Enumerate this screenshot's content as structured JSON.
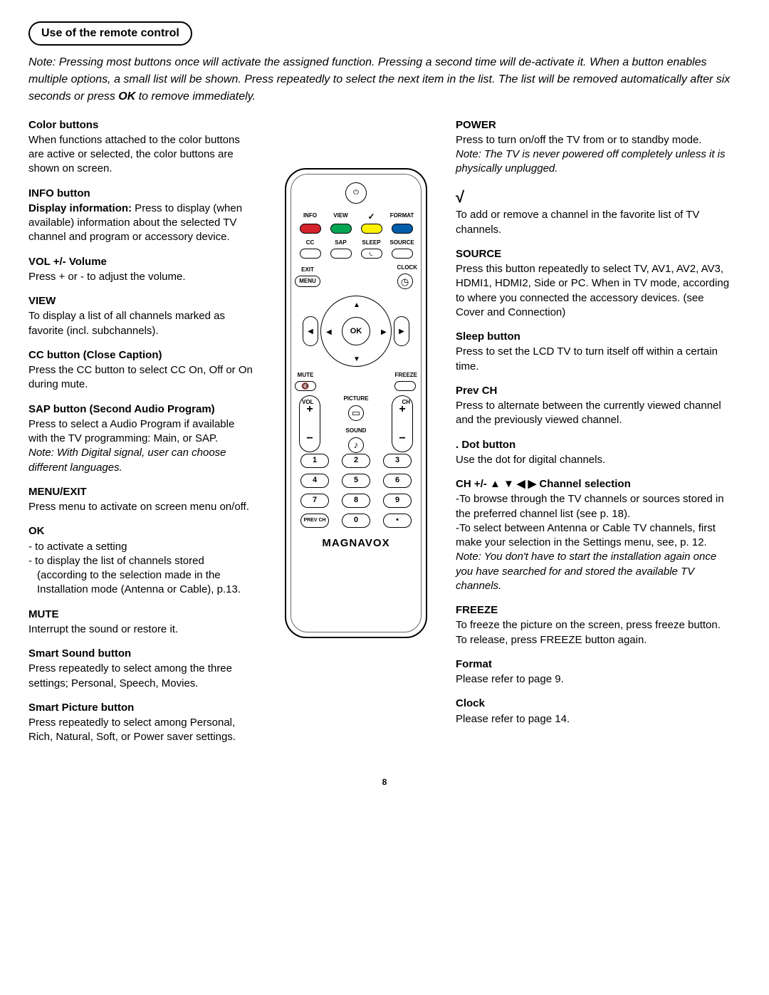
{
  "page_title": "Use of the remote control",
  "intro_note_html": "Note: Pressing most buttons once will activate the assigned function. Pressing a second time will de-activate it. When a button enables multiple options, a small list will be shown. Press repeatedly to select the next item in the list. The list will be removed automatically after six seconds or press <b>OK</b> to remove immediately.",
  "page_number": "8",
  "left_sections": [
    {
      "title": "Color buttons",
      "body": "When functions attached to the color buttons are active or selected, the color buttons are shown on screen."
    },
    {
      "title": "INFO button",
      "body": "<b>Display information:</b> Press to display (when available) information about the selected TV channel and program or accessory device."
    },
    {
      "title": "VOL +/- Volume",
      "body": "Press + or - to adjust the volume."
    },
    {
      "title": "VIEW",
      "body": "To display a list of all channels marked as favorite (incl. subchannels)."
    },
    {
      "title": "CC button (Close Caption)",
      "body": "Press the CC button to select CC On, Off or On during mute."
    },
    {
      "title": "SAP button (Second Audio Program)",
      "body": "Press to select a Audio Program if available with the TV programming: Main, or SAP.",
      "note": "Note: With Digital signal, user can choose different languages."
    },
    {
      "title": "MENU/EXIT",
      "body": "Press menu to activate on screen menu on/off."
    },
    {
      "title": "OK",
      "list": [
        "- to activate a setting",
        "- to display the list of channels stored (according to the selection made in the Installation mode (Antenna or Cable), p.13."
      ]
    },
    {
      "title": "MUTE",
      "body": "Interrupt the sound or restore it."
    },
    {
      "title": "Smart Sound button",
      "body": "Press repeatedly to select among the three settings; Personal, Speech, Movies."
    },
    {
      "title": "Smart Picture button",
      "body": "Press repeatedly to select among Personal, Rich, Natural, Soft, or Power saver settings."
    }
  ],
  "right_sections": [
    {
      "title": "POWER",
      "body": "Press to turn on/off the TV from or to standby mode.",
      "note": "Note: The TV is never powered off completely unless it is physically unplugged."
    },
    {
      "title_html": "<span class='check'>√</span>",
      "body": "To add or remove a channel in the favorite list of TV channels."
    },
    {
      "title": "SOURCE",
      "body": "Press this button repeatedly to select TV, AV1, AV2, AV3, HDMI1, HDMI2, Side or PC. When in TV mode, according to where you connected the accessory devices. (see Cover and Connection)"
    },
    {
      "title": "Sleep button",
      "body": "Press to set the LCD TV to turn itself off within a certain time."
    },
    {
      "title": "Prev CH",
      "body": "Press to alternate between the currently viewed channel and the previously viewed channel."
    },
    {
      "title": ". Dot button",
      "body": "Use the dot for digital channels."
    },
    {
      "title_html": "CH +/- <span class='arrows-inline'>▲ ▼ ◀ ▶</span> Channel selection",
      "body": "-To browse through the TV channels or sources stored in the preferred channel list (see p. 18).<br>-To select between Antenna or Cable TV channels, first make your selection in the Settings menu, see, p. 12.",
      "note": "Note: You don't have to start the installation again once you have searched for and stored the available TV channels."
    },
    {
      "title": "FREEZE",
      "body": "To freeze the picture on the screen, press freeze button. To release, press FREEZE button again."
    },
    {
      "title": "Format",
      "body": "Please refer to page 9."
    },
    {
      "title": "Clock",
      "body": "Please refer to page 14."
    }
  ],
  "remote": {
    "brand": "MAGNAVOX",
    "color_buttons": [
      {
        "label": "INFO",
        "color": "#d2232a"
      },
      {
        "label": "VIEW",
        "color": "#00a651"
      },
      {
        "label": "✓",
        "color": "#fff200",
        "is_check": true
      },
      {
        "label": "FORMAT",
        "color": "#005dab"
      }
    ],
    "row2": [
      "CC",
      "SAP",
      "SLEEP",
      "SOURCE"
    ],
    "row3_left": "EXIT",
    "row3_right": "CLOCK",
    "menu": "MENU",
    "ok": "OK",
    "mute": "MUTE",
    "freeze": "FREEZE",
    "vol": "VOL",
    "ch": "CH",
    "picture": "PICTURE",
    "sound": "SOUND",
    "numpad": [
      [
        "1",
        "2",
        "3"
      ],
      [
        "4",
        "5",
        "6"
      ],
      [
        "7",
        "8",
        "9"
      ],
      [
        "PREV CH",
        "0",
        "•"
      ]
    ]
  }
}
